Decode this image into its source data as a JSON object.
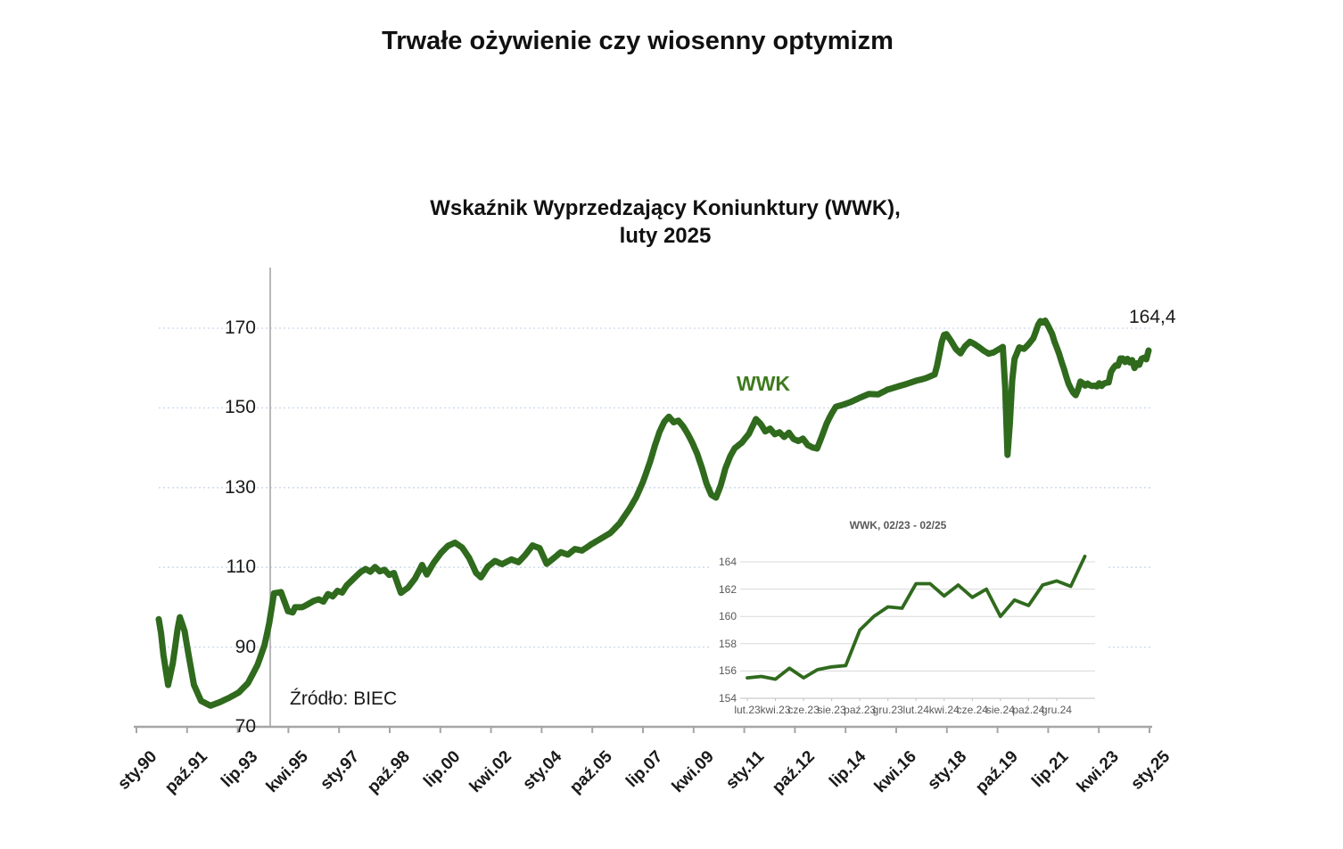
{
  "page": {
    "title": "Trwałe ożywienie czy wiosenny optymizm"
  },
  "chart": {
    "title_line1": "Wskaźnik Wyprzedzający Koniunktury (WWK),",
    "title_line2": "luty 2025",
    "series_label": "WWK",
    "end_value_label": "164,4",
    "source": "Źródło: BIEC"
  },
  "colors": {
    "line_green": "#2f6a1d",
    "series_label_green": "#3e7a1e",
    "gridline_blue": "#c9d8ec",
    "axis_gray": "#a6a6a6",
    "inset_grid_gray": "#d9d9d9",
    "inset_text_gray": "#595959"
  },
  "chart_data": {
    "type": "line",
    "main": {
      "series_name": "WWK",
      "period": "sty.90 - lut.25",
      "final_value": 164.4,
      "ylim": [
        70,
        185
      ],
      "y_ticks": [
        170,
        150,
        130,
        110,
        90,
        70
      ],
      "x_tick_labels": [
        "sty.90",
        "paź.91",
        "lip.93",
        "kwi.95",
        "sty.97",
        "paź.98",
        "lip.00",
        "kwi.02",
        "sty.04",
        "paź.05",
        "lip.07",
        "kwi.09",
        "sty.11",
        "paź.12",
        "lip.14",
        "kwi.16",
        "sty.18",
        "paź.19",
        "lip.21",
        "kwi.23",
        "sty.25"
      ],
      "grid": "horizontal-dotted",
      "anchors_note": "pairs of [months since Jan 1990, WWK value]; monthly series is linear interpolation between anchors",
      "anchors": [
        [
          0,
          97
        ],
        [
          1,
          93.5
        ],
        [
          2,
          88
        ],
        [
          4,
          80.5
        ],
        [
          6,
          86
        ],
        [
          8,
          94.5
        ],
        [
          9,
          97.5
        ],
        [
          11,
          94
        ],
        [
          13,
          87
        ],
        [
          15,
          80.5
        ],
        [
          18,
          76.5
        ],
        [
          22,
          75.3
        ],
        [
          26,
          76.2
        ],
        [
          30,
          77.3
        ],
        [
          34,
          78.6
        ],
        [
          38,
          81
        ],
        [
          42,
          85.5
        ],
        [
          45,
          90.5
        ],
        [
          47,
          96
        ],
        [
          49,
          103.5
        ],
        [
          52,
          103.8
        ],
        [
          55,
          99
        ],
        [
          57,
          98.7
        ],
        [
          58,
          100
        ],
        [
          61,
          100
        ],
        [
          63,
          100.6
        ],
        [
          66,
          101.6
        ],
        [
          68,
          102
        ],
        [
          70,
          101.4
        ],
        [
          72,
          103.3
        ],
        [
          74,
          102.7
        ],
        [
          76,
          104.1
        ],
        [
          78,
          103.7
        ],
        [
          80,
          105.5
        ],
        [
          84,
          107.8
        ],
        [
          86,
          108.9
        ],
        [
          88,
          109.6
        ],
        [
          90,
          108.9
        ],
        [
          92,
          110.1
        ],
        [
          94,
          109
        ],
        [
          96,
          109.4
        ],
        [
          98,
          108.1
        ],
        [
          100,
          108.6
        ],
        [
          103,
          103.6
        ],
        [
          106,
          104.9
        ],
        [
          109,
          107.2
        ],
        [
          112,
          110.6
        ],
        [
          114,
          108.2
        ],
        [
          117,
          111.2
        ],
        [
          120,
          113.6
        ],
        [
          123,
          115.4
        ],
        [
          126,
          116.2
        ],
        [
          129,
          115
        ],
        [
          132,
          112.4
        ],
        [
          135,
          108.6
        ],
        [
          137,
          107.5
        ],
        [
          140,
          110.2
        ],
        [
          143,
          111.6
        ],
        [
          146,
          110.8
        ],
        [
          150,
          112
        ],
        [
          153,
          111.3
        ],
        [
          156,
          113.2
        ],
        [
          159,
          115.5
        ],
        [
          162,
          114.8
        ],
        [
          165,
          110.9
        ],
        [
          168,
          112.3
        ],
        [
          171,
          113.8
        ],
        [
          174,
          113.2
        ],
        [
          177,
          114.6
        ],
        [
          180,
          114.2
        ],
        [
          184,
          115.8
        ],
        [
          188,
          117.2
        ],
        [
          192,
          118.6
        ],
        [
          196,
          121
        ],
        [
          200,
          124.5
        ],
        [
          203,
          127.5
        ],
        [
          206,
          131.5
        ],
        [
          209,
          136.5
        ],
        [
          211,
          140.5
        ],
        [
          213,
          144
        ],
        [
          215,
          146.5
        ],
        [
          217,
          147.8
        ],
        [
          219,
          146.4
        ],
        [
          221,
          146.8
        ],
        [
          223,
          145.4
        ],
        [
          225,
          143.5
        ],
        [
          227,
          141.2
        ],
        [
          229,
          138.5
        ],
        [
          231,
          135
        ],
        [
          233,
          131
        ],
        [
          235,
          128.2
        ],
        [
          237,
          127.5
        ],
        [
          239,
          130.5
        ],
        [
          241,
          134.8
        ],
        [
          243,
          137.8
        ],
        [
          245,
          139.9
        ],
        [
          248,
          141.3
        ],
        [
          251,
          143.5
        ],
        [
          254,
          147.2
        ],
        [
          256,
          146
        ],
        [
          258,
          144.1
        ],
        [
          260,
          144.8
        ],
        [
          262,
          143.4
        ],
        [
          264,
          143.9
        ],
        [
          266,
          142.7
        ],
        [
          268,
          143.8
        ],
        [
          270,
          142.2
        ],
        [
          272,
          141.7
        ],
        [
          274,
          142.3
        ],
        [
          276,
          140.7
        ],
        [
          278,
          140.1
        ],
        [
          280,
          139.8
        ],
        [
          282,
          142.8
        ],
        [
          284,
          146
        ],
        [
          286,
          148.4
        ],
        [
          288,
          150.3
        ],
        [
          291,
          150.8
        ],
        [
          294,
          151.4
        ],
        [
          298,
          152.5
        ],
        [
          302,
          153.5
        ],
        [
          306,
          153.4
        ],
        [
          310,
          154.6
        ],
        [
          314,
          155.3
        ],
        [
          318,
          156
        ],
        [
          322,
          156.8
        ],
        [
          326,
          157.4
        ],
        [
          330,
          158.4
        ],
        [
          331,
          160.5
        ],
        [
          332,
          163.5
        ],
        [
          333,
          166.5
        ],
        [
          334,
          168.3
        ],
        [
          335,
          168.5
        ],
        [
          337,
          166.8
        ],
        [
          339,
          164.8
        ],
        [
          341,
          163.7
        ],
        [
          343,
          165.5
        ],
        [
          345,
          166.6
        ],
        [
          347,
          166
        ],
        [
          349,
          165.2
        ],
        [
          351,
          164.3
        ],
        [
          353,
          163.6
        ],
        [
          355,
          163.9
        ],
        [
          357,
          164.6
        ],
        [
          359,
          165.3
        ],
        [
          360,
          155
        ],
        [
          361,
          138.2
        ],
        [
          362,
          146
        ],
        [
          363,
          157
        ],
        [
          364,
          162.3
        ],
        [
          366,
          165.2
        ],
        [
          368,
          164.8
        ],
        [
          370,
          166
        ],
        [
          372,
          167.5
        ],
        [
          374,
          170.8
        ],
        [
          375,
          171.8
        ],
        [
          376,
          171.4
        ],
        [
          377,
          171.9
        ],
        [
          378,
          170.9
        ],
        [
          380,
          168.5
        ],
        [
          381,
          166.6
        ],
        [
          383,
          163.5
        ],
        [
          384,
          161.5
        ],
        [
          385,
          159.8
        ],
        [
          386,
          157.8
        ],
        [
          387,
          156
        ],
        [
          388,
          154.8
        ],
        [
          389,
          153.8
        ],
        [
          390,
          153.2
        ],
        [
          391,
          154.6
        ],
        [
          392,
          156.6
        ],
        [
          393,
          156.2
        ],
        [
          394,
          155.6
        ],
        [
          395,
          156.1
        ],
        [
          396,
          155.7
        ],
        [
          397,
          155.5
        ],
        [
          398,
          155.6
        ],
        [
          399,
          155.4
        ],
        [
          400,
          156.2
        ],
        [
          401,
          155.5
        ],
        [
          402,
          156.1
        ],
        [
          403,
          156.3
        ],
        [
          404,
          156.4
        ],
        [
          405,
          159
        ],
        [
          406,
          160
        ],
        [
          407,
          160.7
        ],
        [
          408,
          160.6
        ],
        [
          409,
          162.4
        ],
        [
          410,
          162.4
        ],
        [
          411,
          161.5
        ],
        [
          412,
          162.3
        ],
        [
          413,
          161.4
        ],
        [
          414,
          162
        ],
        [
          415,
          160
        ],
        [
          416,
          161.2
        ],
        [
          417,
          160.8
        ],
        [
          418,
          162.3
        ],
        [
          419,
          162.6
        ],
        [
          420,
          162.2
        ],
        [
          421,
          164.4
        ]
      ]
    },
    "inset": {
      "type": "line",
      "title": "WWK, 02/23 - 02/25",
      "y_ticks": [
        164,
        162,
        160,
        158,
        156,
        154
      ],
      "ylim": [
        154,
        165
      ],
      "x_tick_labels": [
        "lut.23",
        "kwi.23",
        "cze.23",
        "sie.23",
        "paź.23",
        "gru.23",
        "lut.24",
        "kwi.24",
        "cze.24",
        "sie.24",
        "paź.24",
        "gru.24"
      ],
      "values_note": "monthly WWK from lut.23 to lut.25",
      "values": [
        155.5,
        155.6,
        155.4,
        156.2,
        155.5,
        156.1,
        156.3,
        156.4,
        159,
        160,
        160.7,
        160.6,
        162.4,
        162.4,
        161.5,
        162.3,
        161.4,
        162,
        160,
        161.2,
        160.8,
        162.3,
        162.6,
        162.2,
        164.4
      ]
    }
  }
}
